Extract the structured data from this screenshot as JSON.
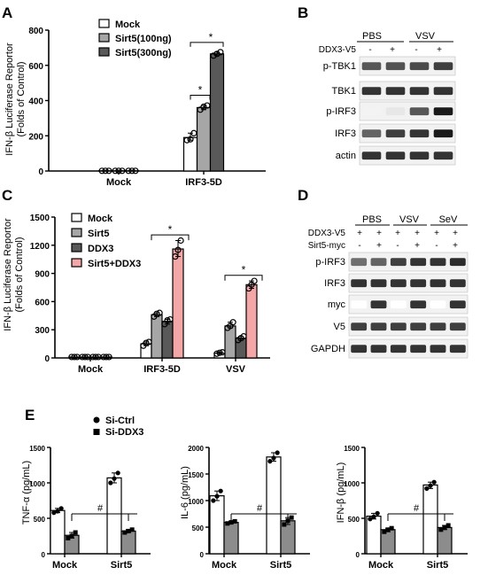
{
  "panels": {
    "A": {
      "letter": "A",
      "ylabel_line1": "IFN-β Luciferase Reportor",
      "ylabel_line2": "(Folds of Control)",
      "legend": [
        "Mock",
        "Sirt5(100ng)",
        "Sirt5(300ng)"
      ],
      "categories": [
        "Mock",
        "IRF3-5D"
      ],
      "yticks": [
        "0",
        "200",
        "400",
        "600",
        "800"
      ],
      "star": "*"
    },
    "B": {
      "letter": "B",
      "groups": [
        "PBS",
        "VSV"
      ],
      "row_label": "DDX3-V5",
      "signs": [
        "-",
        "+",
        "-",
        "+"
      ],
      "blots": [
        "p-TBK1",
        "TBK1",
        "p-IRF3",
        "IRF3",
        "actin"
      ]
    },
    "C": {
      "letter": "C",
      "ylabel_line1": "IFN-β Luciferase Reportor",
      "ylabel_line2": "(Folds of Control)",
      "legend": [
        "Mock",
        "Sirt5",
        "DDX3",
        "Sirt5+DDX3"
      ],
      "categories": [
        "Mock",
        "IRF3-5D",
        "VSV"
      ],
      "yticks": [
        "0",
        "300",
        "600",
        "900",
        "1200",
        "1500"
      ],
      "star": "*"
    },
    "D": {
      "letter": "D",
      "groups": [
        "PBS",
        "VSV",
        "SeV"
      ],
      "row1_label": "DDX3-V5",
      "row1_signs": [
        "+",
        "+",
        "+",
        "+",
        "+",
        "+"
      ],
      "row2_label": "Sirt5-myc",
      "row2_signs": [
        "-",
        "+",
        "-",
        "+",
        "-",
        "+"
      ],
      "blots": [
        "p-IRF3",
        "IRF3",
        "myc",
        "V5",
        "GAPDH"
      ]
    },
    "E": {
      "letter": "E",
      "legend": [
        "Si-Ctrl",
        "Si-DDX3"
      ],
      "hash": "#",
      "subplots": [
        {
          "ylabel": "TNF-α (pg/mL)",
          "yticks": [
            "0",
            "500",
            "1000",
            "1500"
          ],
          "categories": [
            "Mock",
            "Sirt5"
          ]
        },
        {
          "ylabel": "IL-6 (pg/mL)",
          "yticks": [
            "0",
            "500",
            "1000",
            "1500",
            "2000"
          ],
          "categories": [
            "Mock",
            "Sirt5"
          ]
        },
        {
          "ylabel": "IFN-β (pg/mL)",
          "yticks": [
            "0",
            "500",
            "1000",
            "1500"
          ],
          "categories": [
            "Mock",
            "Sirt5"
          ]
        }
      ]
    }
  },
  "chart_data": [
    {
      "type": "bar",
      "panel": "A",
      "categories": [
        "Mock",
        "IRF3-5D"
      ],
      "series": [
        {
          "name": "Mock",
          "values": [
            1,
            190
          ],
          "points": [
            [
              1,
              1,
              1
            ],
            [
              175,
              180,
              215
            ]
          ]
        },
        {
          "name": "Sirt5(100ng)",
          "values": [
            1,
            360
          ],
          "points": [
            [
              1,
              1,
              1
            ],
            [
              348,
              365,
              372
            ]
          ]
        },
        {
          "name": "Sirt5(300ng)",
          "values": [
            1,
            665
          ],
          "points": [
            [
              1,
              1,
              1
            ],
            [
              655,
              665,
              675
            ]
          ]
        }
      ],
      "ylim": [
        0,
        800
      ],
      "colors": [
        "#ffffff",
        "#a6a6a6",
        "#595959"
      ]
    },
    {
      "type": "bar",
      "panel": "C",
      "categories": [
        "Mock",
        "IRF3-5D",
        "VSV"
      ],
      "series": [
        {
          "name": "Mock",
          "values": [
            10,
            150,
            50
          ],
          "points": [
            [
              10,
              10,
              10
            ],
            [
              130,
              160,
              170
            ],
            [
              45,
              55,
              60
            ]
          ]
        },
        {
          "name": "Sirt5",
          "values": [
            10,
            460,
            340
          ],
          "points": [
            [
              10,
              10,
              10
            ],
            [
              440,
              470,
              480
            ],
            [
              320,
              340,
              380
            ]
          ]
        },
        {
          "name": "DDX3",
          "values": [
            10,
            390,
            210
          ],
          "points": [
            [
              10,
              10,
              10
            ],
            [
              360,
              400,
              410
            ],
            [
              190,
              210,
              230
            ]
          ]
        },
        {
          "name": "Sirt5+DDX3",
          "values": [
            10,
            1160,
            780
          ],
          "points": [
            [
              10,
              10,
              10
            ],
            [
              1080,
              1150,
              1250
            ],
            [
              740,
              780,
              820
            ]
          ]
        }
      ],
      "ylim": [
        0,
        1500
      ],
      "colors": [
        "#ffffff",
        "#a6a6a6",
        "#595959",
        "#f4a7a7"
      ]
    },
    {
      "type": "bar",
      "panel": "E1",
      "categories": [
        "Mock",
        "Sirt5"
      ],
      "series": [
        {
          "name": "Si-Ctrl",
          "values": [
            610,
            1070
          ],
          "points": [
            [
              580,
              600,
              640
            ],
            [
              1000,
              1060,
              1140
            ]
          ]
        },
        {
          "name": "Si-DDX3",
          "values": [
            260,
            320
          ],
          "points": [
            [
              220,
              250,
              300
            ],
            [
              300,
              320,
              340
            ]
          ]
        }
      ],
      "ylim": [
        0,
        1500
      ]
    },
    {
      "type": "bar",
      "panel": "E2",
      "categories": [
        "Mock",
        "Sirt5"
      ],
      "series": [
        {
          "name": "Si-Ctrl",
          "values": [
            1090,
            1820
          ],
          "points": [
            [
              1000,
              1080,
              1180
            ],
            [
              1740,
              1800,
              1900
            ]
          ]
        },
        {
          "name": "Si-DDX3",
          "values": [
            590,
            620
          ],
          "points": [
            [
              570,
              590,
              610
            ],
            [
              550,
              620,
              680
            ]
          ]
        }
      ],
      "ylim": [
        0,
        2000
      ]
    },
    {
      "type": "bar",
      "panel": "E3",
      "categories": [
        "Mock",
        "Sirt5"
      ],
      "series": [
        {
          "name": "Si-Ctrl",
          "values": [
            530,
            970
          ],
          "points": [
            [
              490,
              520,
              570
            ],
            [
              920,
              960,
              1010
            ]
          ]
        },
        {
          "name": "Si-DDX3",
          "values": [
            340,
            370
          ],
          "points": [
            [
              310,
              340,
              360
            ],
            [
              340,
              370,
              400
            ]
          ]
        }
      ],
      "ylim": [
        0,
        1500
      ]
    }
  ]
}
